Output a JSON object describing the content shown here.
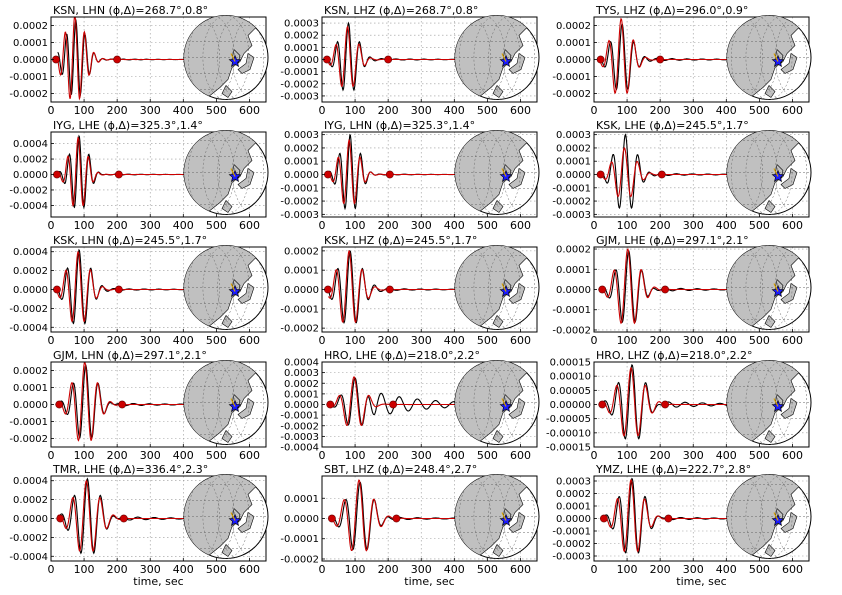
{
  "xlabel": "time, sec",
  "colors": {
    "observed": "#000000",
    "synthetic": "#cc0000",
    "marker": "#cc0000",
    "land": "#c0c0c0",
    "ocean": "#ffffff",
    "star": "#1a1aff"
  },
  "chart_data": [
    {
      "type": "line",
      "title": "KSN, LHN (ϕ,Δ)=268.7°,0.8°",
      "xlim": [
        0,
        650
      ],
      "ylim": [
        -0.00025,
        0.00025
      ],
      "xticks": [
        "0",
        "100",
        "200",
        "300",
        "400",
        "500",
        "600"
      ],
      "yticks": [
        "0.0002",
        "0.0001",
        "0.0000",
        "-0.0001",
        "-0.0002"
      ],
      "ytick_values": [
        0.0002,
        0.0001,
        0,
        -0.0001,
        -0.0002
      ],
      "xlabel": "",
      "markers": [
        15,
        200
      ],
      "wave": {
        "start": 20,
        "end": 440,
        "center": 75,
        "width": 30,
        "period": 28,
        "amp_obs": 0.00023,
        "amp_syn": 0.00026,
        "coda": 0.06
      }
    },
    {
      "type": "line",
      "title": "KSN, LHZ (ϕ,Δ)=268.7°,0.8°",
      "xlim": [
        0,
        650
      ],
      "ylim": [
        -0.00035,
        0.00035
      ],
      "xticks": [
        "0",
        "100",
        "200",
        "300",
        "400",
        "500",
        "600"
      ],
      "yticks": [
        "0.0003",
        "0.0002",
        "0.0001",
        "0.0000",
        "-0.0001",
        "-0.0002",
        "-0.0003"
      ],
      "ytick_values": [
        0.0003,
        0.0002,
        0.0001,
        0,
        -0.0001,
        -0.0002,
        -0.0003
      ],
      "xlabel": "",
      "markers": [
        15,
        200
      ],
      "wave": {
        "start": 20,
        "end": 440,
        "center": 80,
        "width": 28,
        "period": 34,
        "amp_obs": 0.0003,
        "amp_syn": 0.00027,
        "coda": 0.1
      }
    },
    {
      "type": "line",
      "title": "TYS, LHZ (ϕ,Δ)=296.0°,0.9°",
      "xlim": [
        0,
        650
      ],
      "ylim": [
        -0.00025,
        0.00025
      ],
      "xticks": [
        "0",
        "100",
        "200",
        "300",
        "400",
        "500",
        "600"
      ],
      "yticks": [
        "0.0002",
        "0.0001",
        "0.0000",
        "-0.0001",
        "-0.0002"
      ],
      "ytick_values": [
        0.0002,
        0.0001,
        0,
        -0.0001,
        -0.0002
      ],
      "xlabel": "",
      "markers": [
        20,
        200
      ],
      "wave": {
        "start": 20,
        "end": 440,
        "center": 85,
        "width": 30,
        "period": 36,
        "amp_obs": 0.00021,
        "amp_syn": 0.00024,
        "coda": 0.15
      }
    },
    {
      "type": "line",
      "title": "IYG, LHE (ϕ,Δ)=325.3°,1.4°",
      "xlim": [
        0,
        650
      ],
      "ylim": [
        -0.00055,
        0.00055
      ],
      "xticks": [
        "0",
        "100",
        "200",
        "300",
        "400",
        "500",
        "600"
      ],
      "yticks": [
        "0.0004",
        "0.0002",
        "0.0000",
        "-0.0002",
        "-0.0004"
      ],
      "ytick_values": [
        0.0004,
        0.0002,
        0,
        -0.0002,
        -0.0004
      ],
      "xlabel": "",
      "markers": [
        18,
        205
      ],
      "wave": {
        "start": 20,
        "end": 440,
        "center": 85,
        "width": 26,
        "period": 30,
        "amp_obs": 0.0005,
        "amp_syn": 0.00048,
        "coda": 0.05
      }
    },
    {
      "type": "line",
      "title": "IYG, LHN (ϕ,Δ)=325.3°,1.4°",
      "xlim": [
        0,
        650
      ],
      "ylim": [
        -0.00032,
        0.00032
      ],
      "xticks": [
        "0",
        "100",
        "200",
        "300",
        "400",
        "500",
        "600"
      ],
      "yticks": [
        "0.0003",
        "0.0002",
        "0.0001",
        "0.0000",
        "-0.0001",
        "-0.0002",
        "-0.0003"
      ],
      "ytick_values": [
        0.0003,
        0.0002,
        0.0001,
        0,
        -0.0001,
        -0.0002,
        -0.0003
      ],
      "xlabel": "",
      "markers": [
        18,
        205
      ],
      "wave": {
        "start": 20,
        "end": 440,
        "center": 85,
        "width": 28,
        "period": 32,
        "amp_obs": 0.0003,
        "amp_syn": 0.00026,
        "coda": 0.05
      }
    },
    {
      "type": "line",
      "title": "KSK, LHE (ϕ,Δ)=245.5°,1.7°",
      "xlim": [
        0,
        650
      ],
      "ylim": [
        -0.00032,
        0.00032
      ],
      "xticks": [
        "0",
        "100",
        "200",
        "300",
        "400",
        "500",
        "600"
      ],
      "yticks": [
        "0.0003",
        "0.0002",
        "0.0001",
        "0.0000",
        "-0.0001",
        "-0.0002",
        "-0.0003"
      ],
      "ytick_values": [
        0.0003,
        0.0002,
        0.0001,
        0,
        -0.0001,
        -0.0002,
        -0.0003
      ],
      "xlabel": "",
      "markers": [
        20,
        205
      ],
      "wave": {
        "start": 20,
        "end": 440,
        "center": 95,
        "width": 32,
        "period": 38,
        "amp_obs": 0.0003,
        "amp_syn": 0.0002,
        "coda": 0.12
      }
    },
    {
      "type": "line",
      "title": "KSK, LHN (ϕ,Δ)=245.5°,1.7°",
      "xlim": [
        0,
        650
      ],
      "ylim": [
        -0.00045,
        0.00045
      ],
      "xticks": [
        "0",
        "100",
        "200",
        "300",
        "400",
        "500",
        "600"
      ],
      "yticks": [
        "0.0004",
        "0.0002",
        "0.0000",
        "-0.0002",
        "-0.0004"
      ],
      "ytick_values": [
        0.0004,
        0.0002,
        0,
        -0.0002,
        -0.0004
      ],
      "xlabel": "",
      "markers": [
        18,
        205
      ],
      "wave": {
        "start": 20,
        "end": 440,
        "center": 85,
        "width": 32,
        "period": 36,
        "amp_obs": 0.00042,
        "amp_syn": 0.0004,
        "coda": 0.1
      }
    },
    {
      "type": "line",
      "title": "KSK, LHZ (ϕ,Δ)=245.5°,1.7°",
      "xlim": [
        0,
        650
      ],
      "ylim": [
        -0.00022,
        0.00022
      ],
      "xticks": [
        "0",
        "100",
        "200",
        "300",
        "400",
        "500",
        "600"
      ],
      "yticks": [
        "0.0002",
        "0.0001",
        "0.0000",
        "-0.0001",
        "-0.0002"
      ],
      "ytick_values": [
        0.0002,
        0.0001,
        0,
        -0.0001,
        -0.0002
      ],
      "xlabel": "",
      "markers": [
        18,
        205
      ],
      "wave": {
        "start": 20,
        "end": 440,
        "center": 85,
        "width": 34,
        "period": 38,
        "amp_obs": 0.0002,
        "amp_syn": 0.0002,
        "coda": 0.12
      }
    },
    {
      "type": "line",
      "title": "GJM, LHE (ϕ,Δ)=297.1°,2.1°",
      "xlim": [
        0,
        650
      ],
      "ylim": [
        -0.00021,
        0.00021
      ],
      "xticks": [
        "0",
        "100",
        "200",
        "300",
        "400",
        "500",
        "600"
      ],
      "yticks": [
        "0.0002",
        "0.0001",
        "0.0000",
        "-0.0001",
        "-0.0002"
      ],
      "ytick_values": [
        0.0002,
        0.0001,
        0,
        -0.0001,
        -0.0002
      ],
      "xlabel": "",
      "markers": [
        25,
        215
      ],
      "wave": {
        "start": 20,
        "end": 440,
        "center": 105,
        "width": 34,
        "period": 40,
        "amp_obs": 0.00019,
        "amp_syn": 0.0002,
        "coda": 0.18
      }
    },
    {
      "type": "line",
      "title": "GJM, LHN (ϕ,Δ)=297.1°,2.1°",
      "xlim": [
        0,
        650
      ],
      "ylim": [
        -0.00025,
        0.00025
      ],
      "xticks": [
        "0",
        "100",
        "200",
        "300",
        "400",
        "500",
        "600"
      ],
      "yticks": [
        "0.0002",
        "0.0001",
        "0.0000",
        "-0.0001",
        "-0.0002"
      ],
      "ytick_values": [
        0.0002,
        0.0001,
        0,
        -0.0001,
        -0.0002
      ],
      "xlabel": "",
      "markers": [
        25,
        215
      ],
      "wave": {
        "start": 20,
        "end": 440,
        "center": 105,
        "width": 34,
        "period": 38,
        "amp_obs": 0.00023,
        "amp_syn": 0.00025,
        "coda": 0.15
      }
    },
    {
      "type": "line",
      "title": "HRO, LHE (ϕ,Δ)=218.0°,2.2°",
      "xlim": [
        0,
        650
      ],
      "ylim": [
        -0.0004,
        0.0004
      ],
      "xticks": [
        "0",
        "100",
        "200",
        "300",
        "400",
        "500",
        "600"
      ],
      "yticks": [
        "0.0004",
        "0.0003",
        "0.0002",
        "0.0001",
        "0.0000",
        "-0.0001",
        "-0.0002",
        "-0.0003",
        "-0.0004"
      ],
      "ytick_values": [
        0.0004,
        0.0003,
        0.0002,
        0.0001,
        0,
        -0.0001,
        -0.0002,
        -0.0003,
        -0.0004
      ],
      "xlabel": "",
      "markers": [
        25,
        215
      ],
      "wave": {
        "start": 20,
        "end": 440,
        "center": 100,
        "width": 30,
        "period": 44,
        "amp_obs": 0.00025,
        "amp_syn": 0.00026,
        "coda": 1.6
      }
    },
    {
      "type": "line",
      "title": "HRO, LHZ (ϕ,Δ)=218.0°,2.2°",
      "xlim": [
        0,
        650
      ],
      "ylim": [
        -0.00015,
        0.00015
      ],
      "xticks": [
        "0",
        "100",
        "200",
        "300",
        "400",
        "500",
        "600"
      ],
      "yticks": [
        "0.00015",
        "0.00010",
        "0.00005",
        "0.00000",
        "-0.00005",
        "-0.00010",
        "-0.00015"
      ],
      "ytick_values": [
        0.00015,
        0.0001,
        5e-05,
        0,
        -5e-05,
        -0.0001,
        -0.00015
      ],
      "xlabel": "",
      "markers": [
        25,
        215
      ],
      "wave": {
        "start": 20,
        "end": 440,
        "center": 115,
        "width": 38,
        "period": 42,
        "amp_obs": 0.00014,
        "amp_syn": 0.00013,
        "coda": 0.35
      }
    },
    {
      "type": "line",
      "title": "TMR, LHE (ϕ,Δ)=336.4°,2.3°",
      "xlim": [
        0,
        650
      ],
      "ylim": [
        -0.00045,
        0.00045
      ],
      "xticks": [
        "0",
        "100",
        "200",
        "300",
        "400",
        "500",
        "600"
      ],
      "yticks": [
        "0.0004",
        "0.0002",
        "0.0000",
        "-0.0002",
        "-0.0004"
      ],
      "ytick_values": [
        0.0004,
        0.0002,
        0,
        -0.0002,
        -0.0004
      ],
      "xlabel": "time, sec",
      "markers": [
        28,
        220
      ],
      "wave": {
        "start": 20,
        "end": 440,
        "center": 110,
        "width": 38,
        "period": 40,
        "amp_obs": 0.00042,
        "amp_syn": 0.0004,
        "coda": 0.2
      }
    },
    {
      "type": "line",
      "title": "SBT, LHZ (ϕ,Δ)=248.4°,2.7°",
      "xlim": [
        0,
        650
      ],
      "ylim": [
        -0.00021,
        0.00021
      ],
      "xticks": [
        "0",
        "100",
        "200",
        "300",
        "400",
        "500",
        "600"
      ],
      "yticks": [
        "0.0001",
        "0.0000",
        "-0.0001",
        "-0.0002"
      ],
      "ytick_values": [
        0.0001,
        0,
        -0.0001,
        -0.0002
      ],
      "xlabel": "time, sec",
      "markers": [
        30,
        225
      ],
      "wave": {
        "start": 20,
        "end": 440,
        "center": 115,
        "width": 38,
        "period": 44,
        "amp_obs": 0.00018,
        "amp_syn": 0.00019,
        "coda": 0.15
      }
    },
    {
      "type": "line",
      "title": "YMZ, LHE (ϕ,Δ)=222.7°,2.8°",
      "xlim": [
        0,
        650
      ],
      "ylim": [
        -0.00034,
        0.00034
      ],
      "xticks": [
        "0",
        "100",
        "200",
        "300",
        "400",
        "500",
        "600"
      ],
      "yticks": [
        "0.0003",
        "0.0002",
        "0.0001",
        "0.0000",
        "-0.0001",
        "-0.0002",
        "-0.0003"
      ],
      "ytick_values": [
        0.0003,
        0.0002,
        0.0001,
        0,
        -0.0001,
        -0.0002,
        -0.0003
      ],
      "xlabel": "time, sec",
      "markers": [
        30,
        225
      ],
      "wave": {
        "start": 20,
        "end": 440,
        "center": 115,
        "width": 36,
        "period": 40,
        "amp_obs": 0.00032,
        "amp_syn": 0.00031,
        "coda": 0.15
      }
    }
  ]
}
